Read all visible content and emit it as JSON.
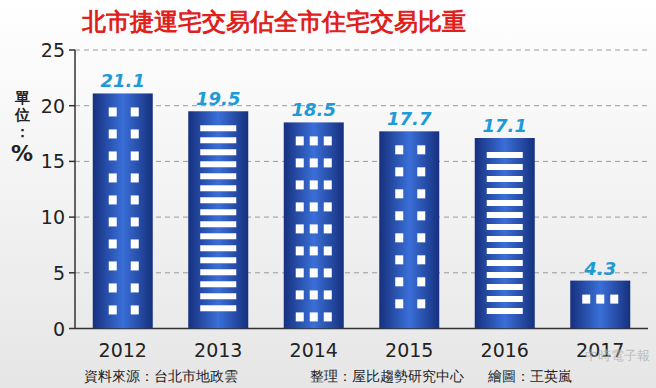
{
  "chart_data": {
    "type": "bar",
    "title": "北市捷運宅交易佔全市住宅交易比重",
    "y_label": "單位：%",
    "categories": [
      "2012",
      "2013",
      "2014",
      "2015",
      "2016",
      "2017"
    ],
    "values": [
      21.1,
      19.5,
      18.5,
      17.7,
      17.1,
      4.3
    ],
    "color": "#3a6fd8",
    "ylim": [
      0,
      25
    ],
    "yticks": [
      0,
      5,
      10,
      15,
      20,
      25
    ],
    "grid": true,
    "data_labels": true,
    "source": "資料來源：台北市地政雲",
    "compiler": "整理：屋比趨勢研究中心",
    "illustrator": "繪圖：王英嵐",
    "watermark": "中時電子報"
  }
}
